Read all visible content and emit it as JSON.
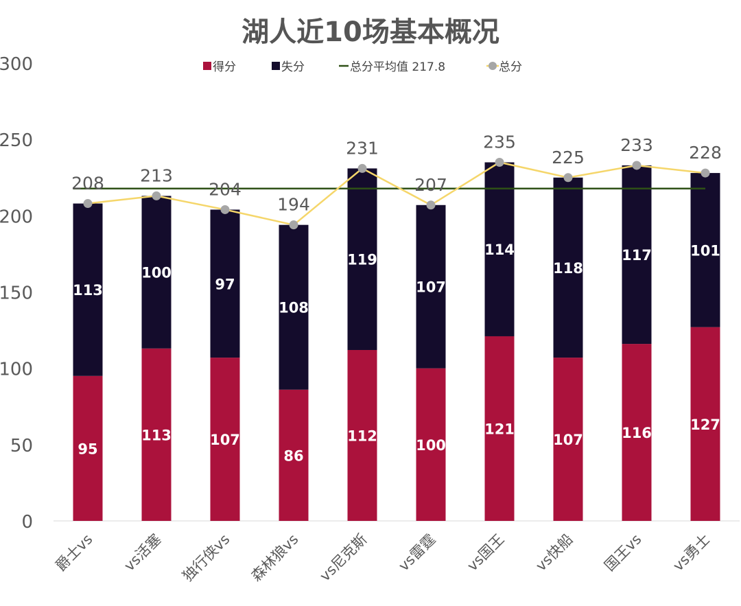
{
  "chart_data": {
    "type": "bar",
    "stacked": true,
    "title": "湖人近10场基本概况",
    "categories": [
      "爵士vs",
      "vs活塞",
      "独行侠vs",
      "森林狼vs",
      "vs尼克斯",
      "vs雷霆",
      "vs国王",
      "vs快船",
      "国王vs",
      "vs勇士"
    ],
    "series": [
      {
        "name": "得分",
        "type": "bar",
        "color": "#AB123C",
        "values": [
          95,
          113,
          107,
          86,
          112,
          100,
          121,
          107,
          116,
          127
        ]
      },
      {
        "name": "失分",
        "type": "bar",
        "color": "#140C2C",
        "values": [
          113,
          100,
          97,
          108,
          119,
          107,
          114,
          118,
          117,
          101
        ]
      },
      {
        "name": "总分平均值 217.8",
        "type": "line",
        "color": "#2E5016",
        "value": 217.8
      },
      {
        "name": "总分",
        "type": "line-markers",
        "line_color": "#F5D66A",
        "marker_color": "#A6A6A6",
        "values": [
          208,
          213,
          204,
          194,
          231,
          207,
          235,
          225,
          233,
          228
        ]
      }
    ],
    "ylim": [
      0,
      300
    ],
    "yticks": [
      "0",
      "50",
      "100",
      "150",
      "200",
      "250",
      "300"
    ],
    "legend_position": "top",
    "grid": false,
    "xlabel": "",
    "ylabel": ""
  }
}
